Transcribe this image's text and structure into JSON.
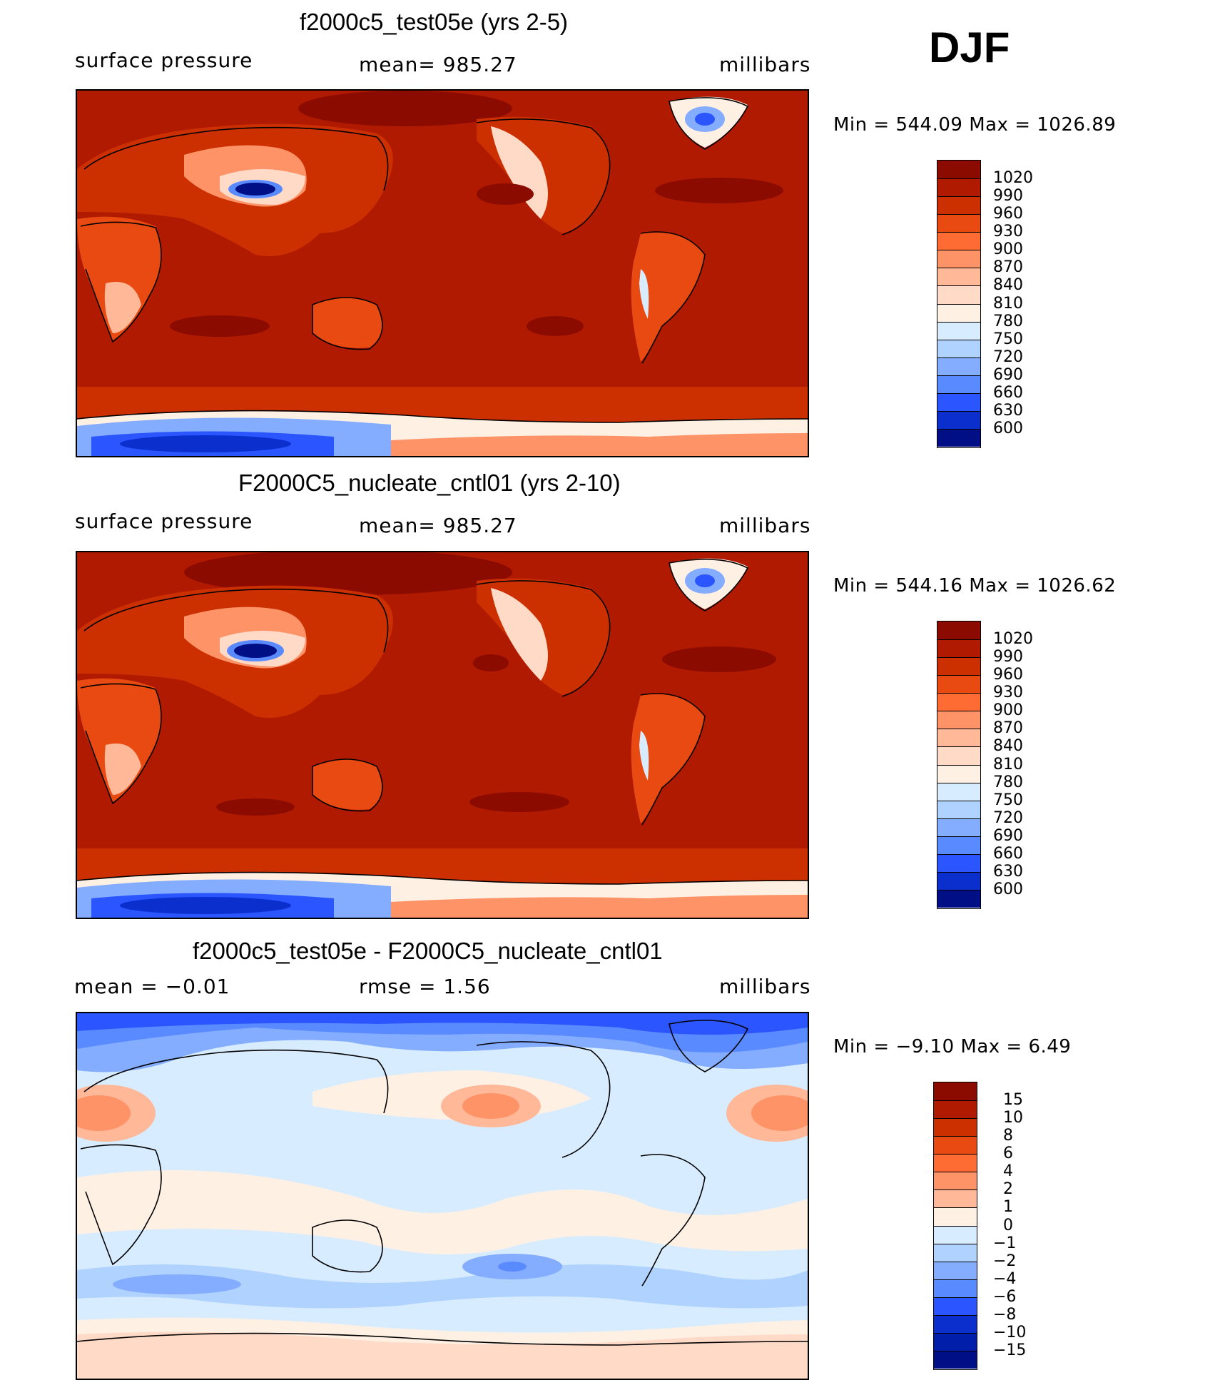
{
  "header": {
    "season": "DJF"
  },
  "panels": [
    {
      "id": "test",
      "title": "f2000c5_test05e (yrs 2-5)",
      "left_label": "surface pressure",
      "center_label": "mean= 985.27",
      "right_label": "millibars",
      "minmax": "Min  =  544.09  Max  =  1026.89"
    },
    {
      "id": "cntl",
      "title": "F2000C5_nucleate_cntl01 (yrs 2-10)",
      "left_label": "surface pressure",
      "center_label": "mean= 985.27",
      "right_label": "millibars",
      "minmax": "Min  =  544.16  Max  =  1026.62"
    },
    {
      "id": "diff",
      "title": "f2000c5_test05e - F2000C5_nucleate_cntl01",
      "left_label": "mean =    −0.01",
      "center_label": "rmse =     1.56",
      "right_label": "millibars",
      "minmax": "Min  =   −9.10  Max  =     6.49"
    }
  ],
  "chart_data": [
    {
      "type": "heatmap",
      "title": "f2000c5_test05e (yrs 2-5)",
      "variable": "surface pressure",
      "units": "millibars",
      "mean": 985.27,
      "min": 544.09,
      "max": 1026.89,
      "colorbar_levels": [
        "1020",
        "990",
        "960",
        "930",
        "900",
        "870",
        "840",
        "810",
        "780",
        "750",
        "720",
        "690",
        "660",
        "630",
        "600"
      ],
      "colorbar_colors": [
        "#8c0b00",
        "#b01a00",
        "#cc2f00",
        "#e84a12",
        "#ff6c33",
        "#ff9368",
        "#ffb898",
        "#ffdac6",
        "#fff0e4",
        "#d8ecff",
        "#b0d2ff",
        "#84adff",
        "#5a8aff",
        "#2b55ff",
        "#0a2fcc",
        "#000f85"
      ]
    },
    {
      "type": "heatmap",
      "title": "F2000C5_nucleate_cntl01 (yrs 2-10)",
      "variable": "surface pressure",
      "units": "millibars",
      "mean": 985.27,
      "min": 544.16,
      "max": 1026.62,
      "colorbar_levels": [
        "1020",
        "990",
        "960",
        "930",
        "900",
        "870",
        "840",
        "810",
        "780",
        "750",
        "720",
        "690",
        "660",
        "630",
        "600"
      ],
      "colorbar_colors": [
        "#8c0b00",
        "#b01a00",
        "#cc2f00",
        "#e84a12",
        "#ff6c33",
        "#ff9368",
        "#ffb898",
        "#ffdac6",
        "#fff0e4",
        "#d8ecff",
        "#b0d2ff",
        "#84adff",
        "#5a8aff",
        "#2b55ff",
        "#0a2fcc",
        "#000f85"
      ]
    },
    {
      "type": "heatmap",
      "title": "f2000c5_test05e - F2000C5_nucleate_cntl01",
      "variable": "surface pressure difference",
      "units": "millibars",
      "mean": -0.01,
      "rmse": 1.56,
      "min": -9.1,
      "max": 6.49,
      "colorbar_levels": [
        "15",
        "10",
        "8",
        "6",
        "4",
        "2",
        "1",
        "0",
        "−1",
        "−2",
        "−4",
        "−6",
        "−8",
        "−10",
        "−15"
      ],
      "colorbar_colors": [
        "#8c0b00",
        "#b01a00",
        "#cc2f00",
        "#e84a12",
        "#ff6c33",
        "#ff9368",
        "#ffb898",
        "#fff0e4",
        "#d8ecff",
        "#b0d2ff",
        "#84adff",
        "#5a8aff",
        "#2b55ff",
        "#0a2fcc",
        "#001eaa",
        "#000f85"
      ]
    }
  ]
}
